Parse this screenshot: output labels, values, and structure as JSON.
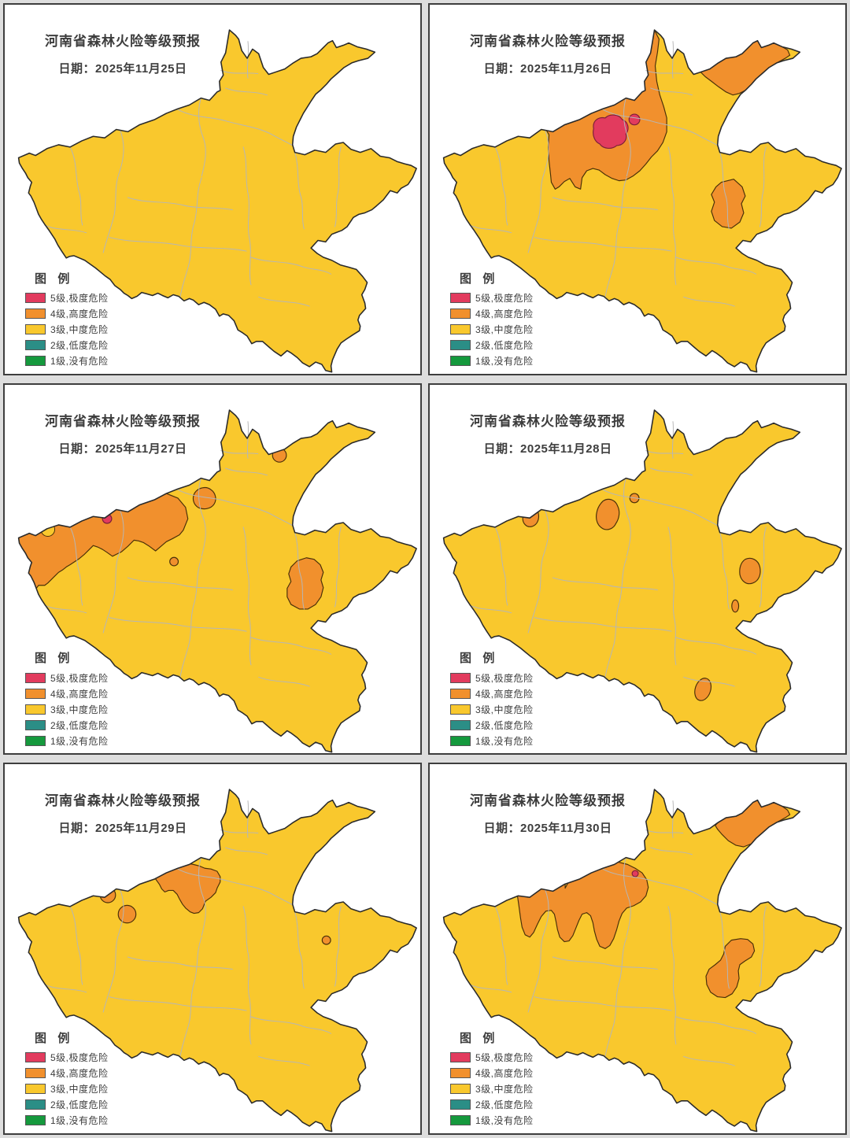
{
  "page": {
    "background": "#dedede"
  },
  "shared": {
    "map_title": "河南省森林火险等级预报",
    "legend_title": "图  例",
    "region": "河南省"
  },
  "colors": {
    "level5": "#e23b5e",
    "level4": "#f1902d",
    "level3": "#f9c82d",
    "level2": "#2b8e86",
    "level1": "#15993d",
    "map_outline": "#2a2a2a",
    "inner_border": "#b6b6b6",
    "panel_border": "#3e3e3e"
  },
  "legend_items": [
    {
      "label": "5级,极度危险",
      "color_key": "level5"
    },
    {
      "label": "4级,高度危险",
      "color_key": "level4"
    },
    {
      "label": "3级,中度危险",
      "color_key": "level3"
    },
    {
      "label": "2级,低度危险",
      "color_key": "level2"
    },
    {
      "label": "1级,没有危险",
      "color_key": "level1"
    }
  ],
  "panels": [
    {
      "date": "日期：2025年11月25日",
      "risk_levels_present": [
        3
      ]
    },
    {
      "date": "日期：2025年11月26日",
      "risk_levels_present": [
        3,
        4,
        5
      ]
    },
    {
      "date": "日期：2025年11月27日",
      "risk_levels_present": [
        3,
        4,
        5
      ]
    },
    {
      "date": "日期：2025年11月28日",
      "risk_levels_present": [
        3,
        4
      ]
    },
    {
      "date": "日期：2025年11月29日",
      "risk_levels_present": [
        3,
        4
      ]
    },
    {
      "date": "日期：2025年11月30日",
      "risk_levels_present": [
        3,
        4,
        5
      ]
    }
  ]
}
